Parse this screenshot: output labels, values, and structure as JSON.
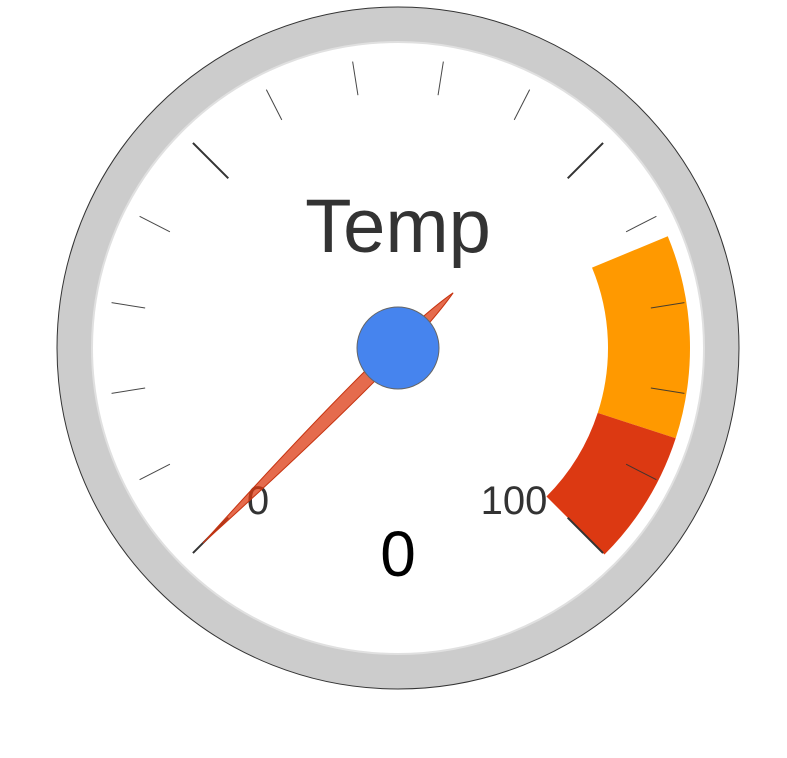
{
  "chart_data": {
    "type": "gauge",
    "title": "Temp",
    "value": 0,
    "min": 0,
    "max": 100,
    "min_label": "0",
    "max_label": "100",
    "value_label": "0",
    "bands": [
      {
        "name": "yellow",
        "from": 75,
        "to": 90,
        "color": "#FF9900"
      },
      {
        "name": "red",
        "from": 90,
        "to": 100,
        "color": "#DC3912"
      }
    ],
    "major_ticks": 3,
    "minor_ticks_per_major": 5,
    "colors": {
      "outer_ring": "#CCCCCC",
      "outer_ring_stroke": "#333333",
      "face": "#FFFFFF",
      "face_stroke": "#E0E0E0",
      "needle": "#DC3912",
      "needle_stroke": "#C63310",
      "hub": "#4684EE",
      "hub_stroke": "#666666",
      "text": "#333333",
      "value_text": "#000000",
      "tick": "#333333"
    }
  }
}
